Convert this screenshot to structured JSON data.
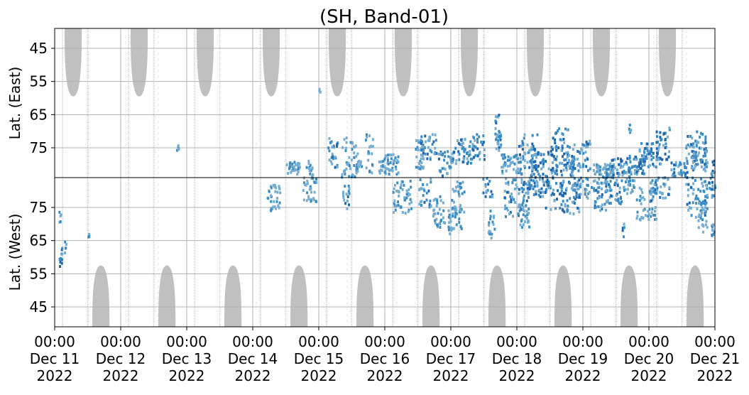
{
  "chart_data": {
    "type": "heatmap",
    "title": "(SH, Band-01)",
    "ylabel_top": "Lat. (East)",
    "ylabel_bottom": "Lat. (West)",
    "x_range": [
      "2022-12-11 00:00",
      "2022-12-21 00:00"
    ],
    "x_ticks": [
      {
        "time": "00:00",
        "date": "Dec 11",
        "year": "2022"
      },
      {
        "time": "00:00",
        "date": "Dec 12",
        "year": "2022"
      },
      {
        "time": "00:00",
        "date": "Dec 13",
        "year": "2022"
      },
      {
        "time": "00:00",
        "date": "Dec 14",
        "year": "2022"
      },
      {
        "time": "00:00",
        "date": "Dec 15",
        "year": "2022"
      },
      {
        "time": "00:00",
        "date": "Dec 16",
        "year": "2022"
      },
      {
        "time": "00:00",
        "date": "Dec 17",
        "year": "2022"
      },
      {
        "time": "00:00",
        "date": "Dec 18",
        "year": "2022"
      },
      {
        "time": "00:00",
        "date": "Dec 19",
        "year": "2022"
      },
      {
        "time": "00:00",
        "date": "Dec 20",
        "year": "2022"
      },
      {
        "time": "00:00",
        "date": "Dec 21",
        "year": "2022"
      }
    ],
    "top_panel": {
      "ylim": [
        39,
        84
      ],
      "y_ticks": [
        "45",
        "55",
        "65",
        "75"
      ]
    },
    "bottom_panel": {
      "ylim": [
        84,
        39
      ],
      "y_ticks": [
        "75",
        "65",
        "55",
        "45"
      ]
    },
    "grid": true,
    "colors": {
      "shade": "#c0c0c0",
      "grid": "#b0b0b0",
      "light": "#74add1",
      "mid": "#3a8cc4",
      "dark": "#1f66b0"
    },
    "shade_lobes": {
      "top_centers_day": [
        0.28,
        1.28,
        2.28,
        3.28,
        4.28,
        5.28,
        6.28,
        7.28,
        8.28,
        9.28
      ],
      "top_edge_lat": 59.5,
      "bottom_centers_day": [
        0.7,
        1.7,
        2.7,
        3.7,
        4.7,
        5.7,
        6.7,
        7.7,
        8.7,
        9.7
      ],
      "bottom_edge_lat": 57.5,
      "half_width_days": 0.13
    },
    "gap_lines_day": [
      0.12,
      1.12,
      2.12,
      3.12,
      4.12,
      5.12,
      6.12,
      7.12,
      8.12,
      9.12,
      0.5,
      1.5,
      2.5,
      3.5,
      4.5,
      5.5,
      6.5,
      7.5,
      8.5,
      9.5
    ],
    "activity": {
      "east": [
        [
          1.85,
          75,
          0.03,
          1,
          1
        ],
        [
          3.6,
          81,
          0.2,
          2,
          1
        ],
        [
          3.85,
          82,
          0.1,
          3,
          1
        ],
        [
          4.2,
          76,
          0.15,
          5,
          2
        ],
        [
          4.45,
          78,
          0.25,
          6,
          1
        ],
        [
          4.6,
          81,
          0.1,
          2,
          1
        ],
        [
          4.75,
          77,
          0.12,
          6,
          1
        ],
        [
          5.05,
          80,
          0.3,
          3,
          1
        ],
        [
          5.5,
          77,
          0.15,
          5,
          1
        ],
        [
          5.65,
          75,
          0.25,
          4,
          2
        ],
        [
          5.9,
          80,
          0.2,
          4,
          2
        ],
        [
          6.15,
          76,
          0.3,
          4,
          2
        ],
        [
          6.4,
          75,
          0.2,
          4,
          2
        ],
        [
          6.7,
          69,
          0.08,
          4,
          3
        ],
        [
          6.7,
          73,
          0.1,
          3,
          2
        ],
        [
          6.9,
          80,
          0.3,
          3,
          1
        ],
        [
          7.15,
          77,
          0.3,
          6,
          2
        ],
        [
          7.4,
          80,
          0.4,
          4,
          3
        ],
        [
          7.65,
          75,
          0.3,
          6,
          3
        ],
        [
          7.75,
          81,
          0.2,
          4,
          3
        ],
        [
          7.95,
          78,
          0.3,
          5,
          2
        ],
        [
          8.3,
          82,
          0.3,
          2,
          1
        ],
        [
          8.55,
          81,
          0.3,
          3,
          2
        ],
        [
          8.8,
          80,
          0.25,
          3,
          2
        ],
        [
          9.0,
          77,
          0.35,
          4,
          2
        ],
        [
          9.2,
          74,
          0.2,
          5,
          3
        ],
        [
          9.45,
          82,
          0.25,
          3,
          2
        ],
        [
          9.7,
          75,
          0.3,
          5,
          2
        ],
        [
          9.75,
          79,
          0.25,
          3,
          2
        ],
        [
          10.0,
          82,
          0.15,
          4,
          3
        ],
        [
          4.0,
          58,
          0.02,
          1,
          1
        ],
        [
          8.7,
          70,
          0.03,
          2,
          1
        ]
      ],
      "west": [
        [
          0.08,
          60,
          0.06,
          3,
          3
        ],
        [
          0.07,
          72,
          0.03,
          2,
          1
        ],
        [
          0.15,
          63,
          0.03,
          2,
          1
        ],
        [
          0.5,
          67,
          0.02,
          1,
          1
        ],
        [
          3.3,
          78,
          0.2,
          4,
          1
        ],
        [
          3.85,
          80,
          0.2,
          4,
          1
        ],
        [
          4.4,
          78,
          0.1,
          4,
          2
        ],
        [
          5.25,
          78,
          0.3,
          5,
          1
        ],
        [
          5.6,
          80,
          0.2,
          5,
          2
        ],
        [
          5.8,
          74,
          0.2,
          5,
          1
        ],
        [
          6.05,
          71,
          0.2,
          4,
          1
        ],
        [
          6.1,
          78,
          0.2,
          5,
          1
        ],
        [
          6.55,
          82,
          0.15,
          4,
          2
        ],
        [
          6.6,
          70,
          0.1,
          5,
          1
        ],
        [
          7.0,
          78,
          0.4,
          6,
          2
        ],
        [
          7.3,
          82,
          0.3,
          4,
          2
        ],
        [
          7.55,
          80,
          0.3,
          6,
          3
        ],
        [
          7.8,
          78,
          0.3,
          5,
          2
        ],
        [
          7.95,
          82,
          0.2,
          4,
          2
        ],
        [
          8.2,
          79,
          0.3,
          5,
          2
        ],
        [
          8.45,
          80,
          0.25,
          4,
          2
        ],
        [
          8.7,
          82,
          0.2,
          3,
          1
        ],
        [
          8.95,
          76,
          0.3,
          5,
          1
        ],
        [
          9.15,
          81,
          0.3,
          4,
          2
        ],
        [
          9.7,
          78,
          0.3,
          6,
          2
        ],
        [
          9.9,
          82,
          0.2,
          4,
          2
        ],
        [
          9.8,
          72,
          0.15,
          5,
          1
        ],
        [
          9.95,
          68,
          0.06,
          2,
          1
        ],
        [
          7.1,
          72,
          0.15,
          4,
          1
        ],
        [
          8.6,
          68,
          0.03,
          2,
          2
        ]
      ]
    }
  }
}
